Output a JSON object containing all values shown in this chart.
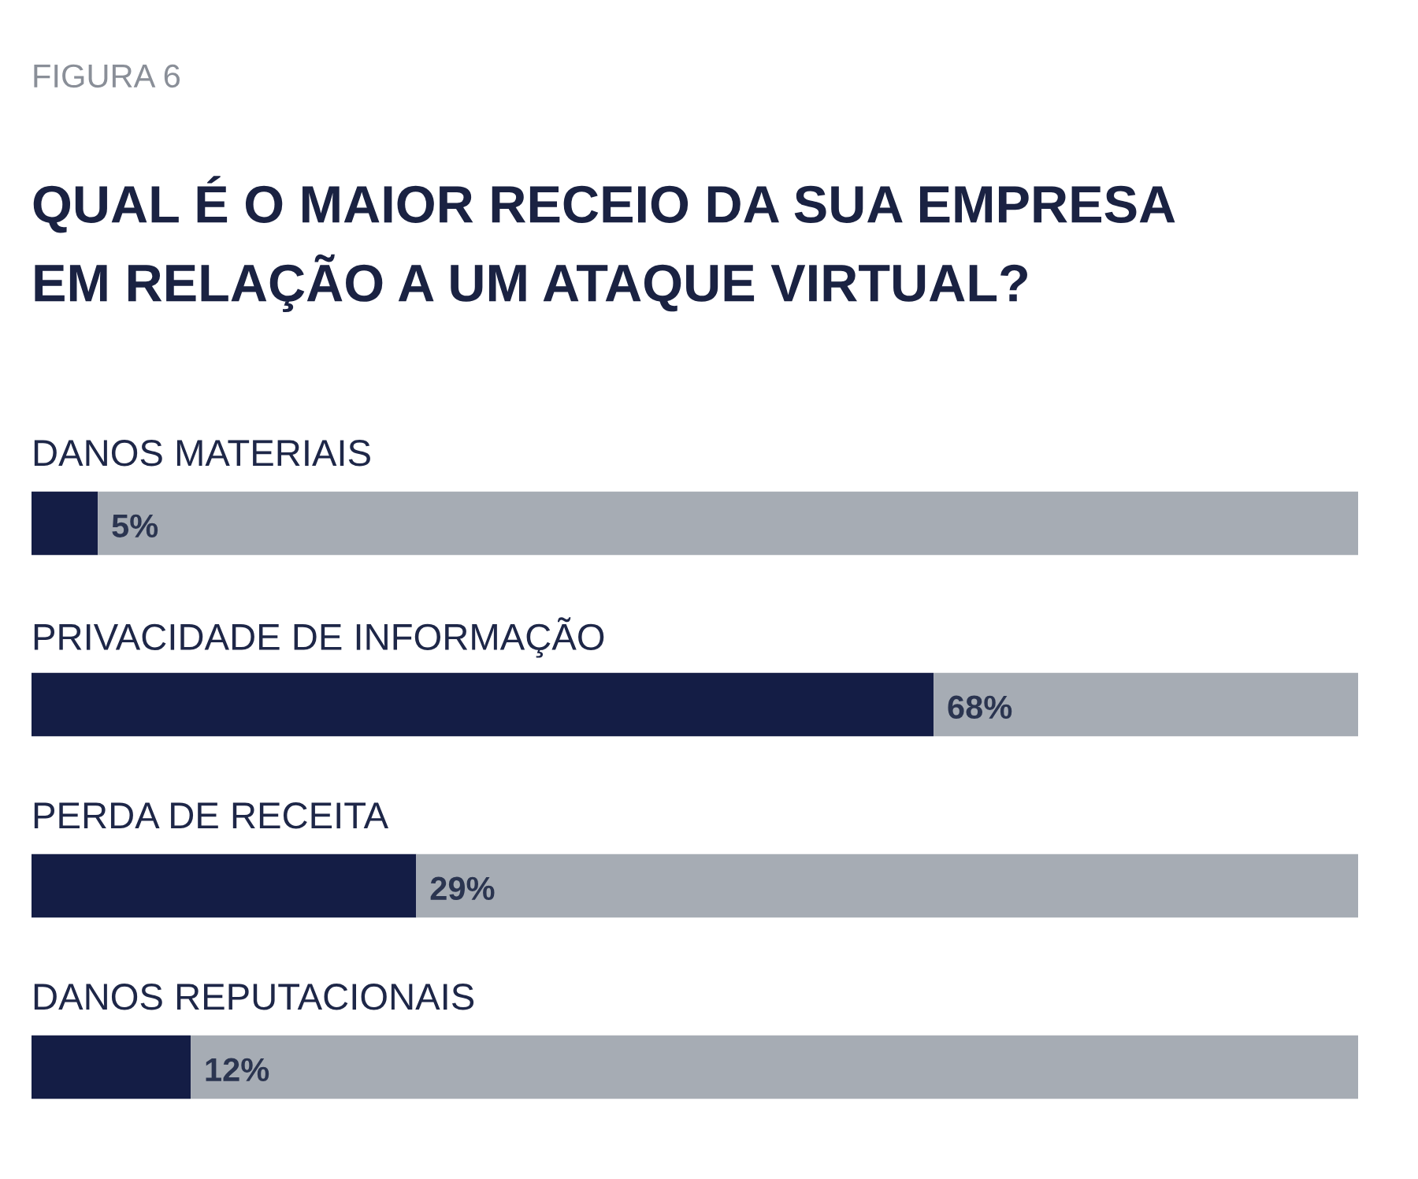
{
  "chart_data": {
    "type": "bar",
    "orientation": "horizontal",
    "stacked": true,
    "title": "QUAL É O MAIOR RECEIO DA SUA EMPRESA\nEM RELAÇÃO A UM ATAQUE VIRTUAL?",
    "annotations": [
      "FIGURA 6"
    ],
    "categories": [
      "DANOS MATERIAIS",
      "PRIVACIDADE DE INFORMAÇÃO",
      "PERDA DE RECEITA",
      "DANOS REPUTACIONAIS"
    ],
    "series": [
      {
        "color": "#141d45",
        "values": [
          5,
          68,
          29,
          12
        ],
        "value_labels": [
          "5%",
          "68%",
          "29%",
          "12%"
        ]
      },
      {
        "color": "#a6acb4",
        "values": [
          95,
          32,
          71,
          88
        ]
      }
    ],
    "xlim": [
      0,
      100
    ],
    "tick_labels": false
  }
}
